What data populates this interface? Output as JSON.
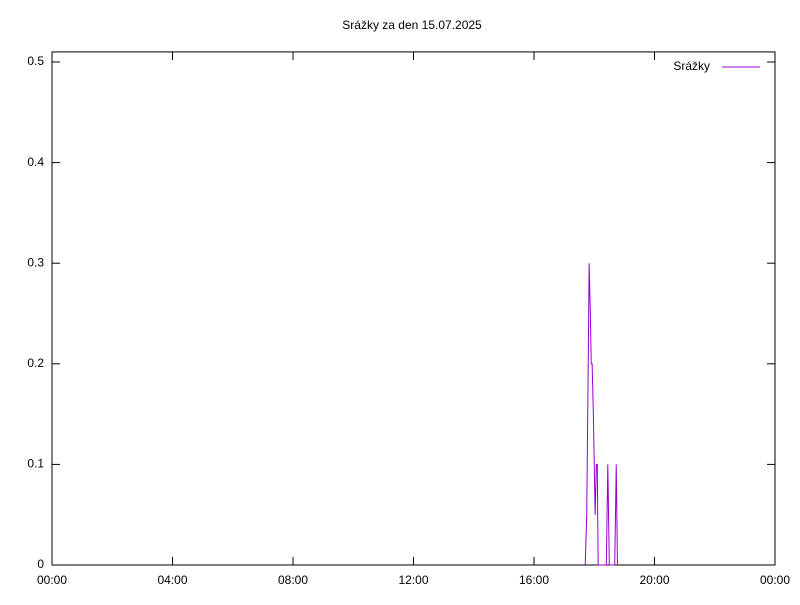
{
  "chart_data": {
    "type": "line",
    "title": "Srážky za den 15.07.2025",
    "x": [
      17.7,
      17.75,
      17.8,
      17.83,
      17.87,
      17.9,
      17.93,
      17.97,
      18.0,
      18.03,
      18.07,
      18.1,
      18.13,
      18.4,
      18.45,
      18.5,
      18.68,
      18.73,
      18.77
    ],
    "series": [
      {
        "name": "Srážky",
        "color": "#9400d3",
        "values": [
          0,
          0.05,
          0.2,
          0.3,
          0.25,
          0.2,
          0.2,
          0.15,
          0.1,
          0.05,
          0.1,
          0.1,
          0,
          0,
          0.1,
          0,
          0,
          0.1,
          0
        ]
      }
    ],
    "xlim": [
      0,
      24
    ],
    "xticks": [
      {
        "value": 0,
        "label": "00:00"
      },
      {
        "value": 4,
        "label": "04:00"
      },
      {
        "value": 8,
        "label": "08:00"
      },
      {
        "value": 12,
        "label": "12:00"
      },
      {
        "value": 16,
        "label": "16:00"
      },
      {
        "value": 20,
        "label": "20:00"
      },
      {
        "value": 24,
        "label": "00:00"
      }
    ],
    "ylim": [
      0,
      0.51
    ],
    "yticks": [
      0,
      0.1,
      0.2,
      0.3,
      0.4,
      0.5
    ],
    "legend": "top-right"
  }
}
